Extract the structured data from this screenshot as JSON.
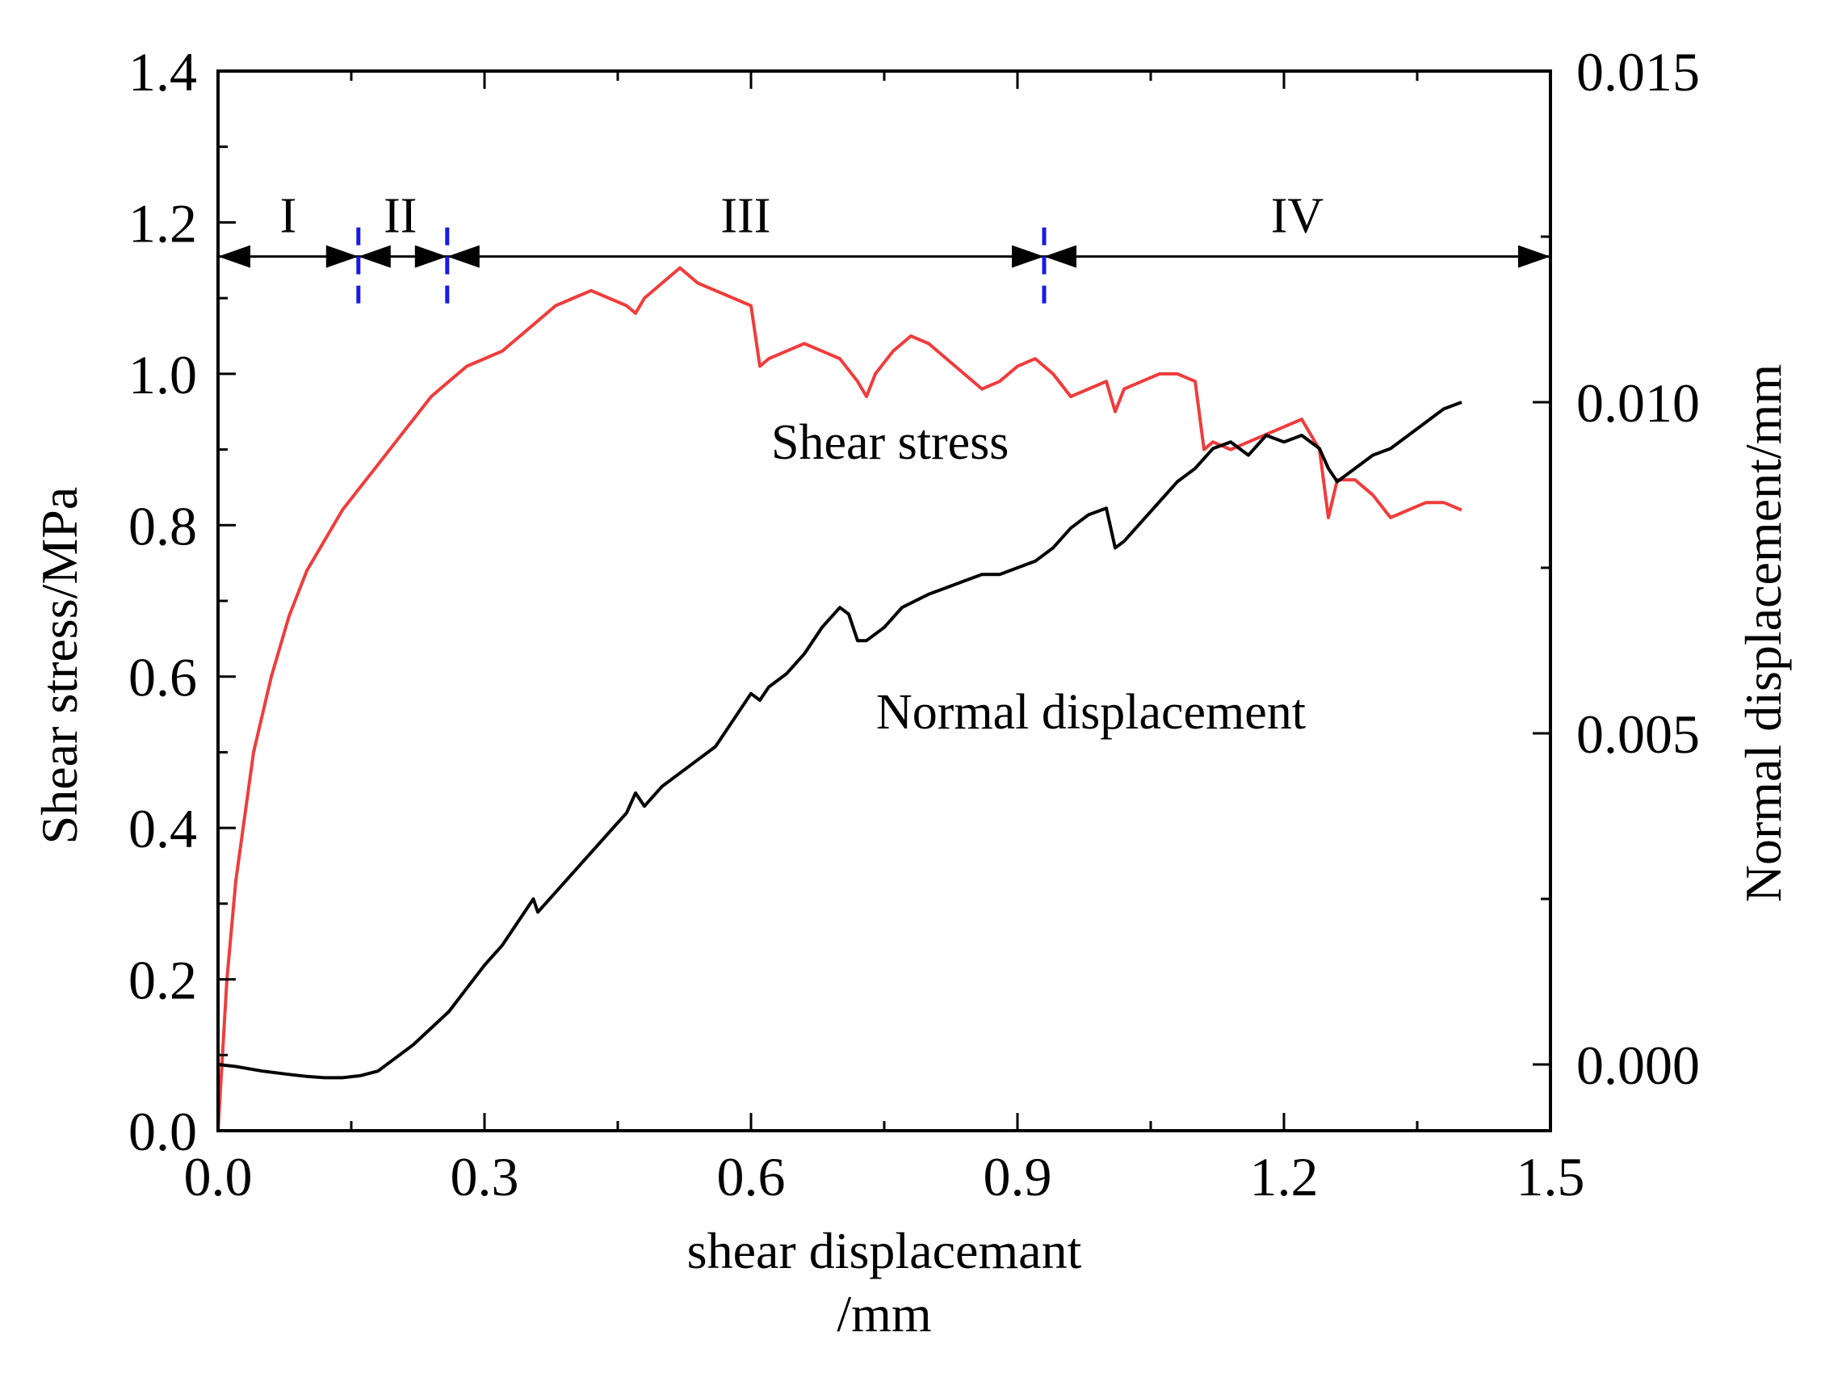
{
  "chart_data": {
    "type": "line",
    "xlabel_line1": "shear displacemant",
    "xlabel_line2": "/mm",
    "ylabel_left": "Shear stress/MPa",
    "ylabel_right": "Normal displacement/mm",
    "xlim": [
      0,
      1.5
    ],
    "ylim_left": [
      0,
      1.4
    ],
    "ylim_right": [
      -0.001,
      0.015
    ],
    "x_ticks": [
      "0.0",
      "0.3",
      "0.6",
      "0.9",
      "1.2",
      "1.5"
    ],
    "y_left_ticks": [
      "0.0",
      "0.2",
      "0.4",
      "0.6",
      "0.8",
      "1.0",
      "1.2",
      "1.4"
    ],
    "y_right_ticks": [
      "0.000",
      "0.005",
      "0.010",
      "0.015"
    ],
    "phases": {
      "labels": [
        "I",
        "II",
        "III",
        "IV"
      ],
      "boundaries_x": [
        0.0,
        0.158,
        0.258,
        0.93,
        1.5
      ],
      "arrow_y": 1.155
    },
    "annotations": {
      "shear": "Shear stress",
      "normal": "Normal displacement"
    },
    "series": [
      {
        "name": "Shear stress",
        "axis": "left",
        "color": "#f03c3c",
        "x": [
          0.0,
          0.01,
          0.02,
          0.04,
          0.06,
          0.08,
          0.1,
          0.12,
          0.14,
          0.16,
          0.18,
          0.2,
          0.22,
          0.24,
          0.26,
          0.28,
          0.3,
          0.32,
          0.34,
          0.36,
          0.38,
          0.4,
          0.42,
          0.44,
          0.46,
          0.47,
          0.48,
          0.5,
          0.52,
          0.54,
          0.56,
          0.58,
          0.6,
          0.61,
          0.62,
          0.64,
          0.66,
          0.68,
          0.7,
          0.72,
          0.73,
          0.74,
          0.76,
          0.78,
          0.8,
          0.82,
          0.84,
          0.86,
          0.88,
          0.9,
          0.92,
          0.94,
          0.96,
          0.98,
          1.0,
          1.01,
          1.02,
          1.04,
          1.06,
          1.08,
          1.1,
          1.11,
          1.12,
          1.14,
          1.16,
          1.18,
          1.2,
          1.22,
          1.24,
          1.25,
          1.26,
          1.28,
          1.3,
          1.32,
          1.34,
          1.36,
          1.38,
          1.4
        ],
        "y": [
          0.0,
          0.2,
          0.33,
          0.5,
          0.6,
          0.68,
          0.74,
          0.78,
          0.82,
          0.85,
          0.88,
          0.91,
          0.94,
          0.97,
          0.99,
          1.01,
          1.02,
          1.03,
          1.05,
          1.07,
          1.09,
          1.1,
          1.11,
          1.1,
          1.09,
          1.08,
          1.1,
          1.12,
          1.14,
          1.12,
          1.11,
          1.1,
          1.09,
          1.01,
          1.02,
          1.03,
          1.04,
          1.03,
          1.02,
          0.99,
          0.97,
          1.0,
          1.03,
          1.05,
          1.04,
          1.02,
          1.0,
          0.98,
          0.99,
          1.01,
          1.02,
          1.0,
          0.97,
          0.98,
          0.99,
          0.95,
          0.98,
          0.99,
          1.0,
          1.0,
          0.99,
          0.9,
          0.91,
          0.9,
          0.91,
          0.92,
          0.93,
          0.94,
          0.9,
          0.81,
          0.86,
          0.86,
          0.84,
          0.81,
          0.82,
          0.83,
          0.83,
          0.82
        ]
      },
      {
        "name": "Normal displacement",
        "axis": "right",
        "color": "#000000",
        "x": [
          0.0,
          0.02,
          0.05,
          0.08,
          0.1,
          0.12,
          0.14,
          0.16,
          0.18,
          0.2,
          0.22,
          0.24,
          0.26,
          0.28,
          0.3,
          0.32,
          0.34,
          0.355,
          0.36,
          0.38,
          0.4,
          0.42,
          0.44,
          0.46,
          0.47,
          0.48,
          0.5,
          0.52,
          0.54,
          0.56,
          0.58,
          0.6,
          0.61,
          0.62,
          0.64,
          0.66,
          0.68,
          0.7,
          0.71,
          0.72,
          0.73,
          0.75,
          0.77,
          0.8,
          0.82,
          0.84,
          0.86,
          0.88,
          0.9,
          0.92,
          0.94,
          0.96,
          0.98,
          1.0,
          1.01,
          1.02,
          1.04,
          1.06,
          1.08,
          1.1,
          1.12,
          1.14,
          1.16,
          1.18,
          1.2,
          1.22,
          1.24,
          1.25,
          1.26,
          1.28,
          1.3,
          1.32,
          1.34,
          1.36,
          1.38,
          1.4
        ],
        "y": [
          0.0,
          -3e-05,
          -0.0001,
          -0.00015,
          -0.00018,
          -0.0002,
          -0.0002,
          -0.00017,
          -0.0001,
          0.0001,
          0.0003,
          0.00055,
          0.0008,
          0.00115,
          0.0015,
          0.0018,
          0.0022,
          0.0025,
          0.0023,
          0.0026,
          0.0029,
          0.0032,
          0.0035,
          0.0038,
          0.0041,
          0.0039,
          0.0042,
          0.0044,
          0.0046,
          0.0048,
          0.0052,
          0.0056,
          0.0055,
          0.0057,
          0.0059,
          0.0062,
          0.0066,
          0.0069,
          0.0068,
          0.0064,
          0.0064,
          0.0066,
          0.0069,
          0.0071,
          0.0072,
          0.0073,
          0.0074,
          0.0074,
          0.0075,
          0.0076,
          0.0078,
          0.0081,
          0.0083,
          0.0084,
          0.0078,
          0.0079,
          0.0082,
          0.0085,
          0.0088,
          0.009,
          0.0093,
          0.0094,
          0.0092,
          0.0095,
          0.0094,
          0.0095,
          0.0093,
          0.009,
          0.0088,
          0.009,
          0.0092,
          0.0093,
          0.0095,
          0.0097,
          0.0099,
          0.01
        ]
      }
    ]
  }
}
